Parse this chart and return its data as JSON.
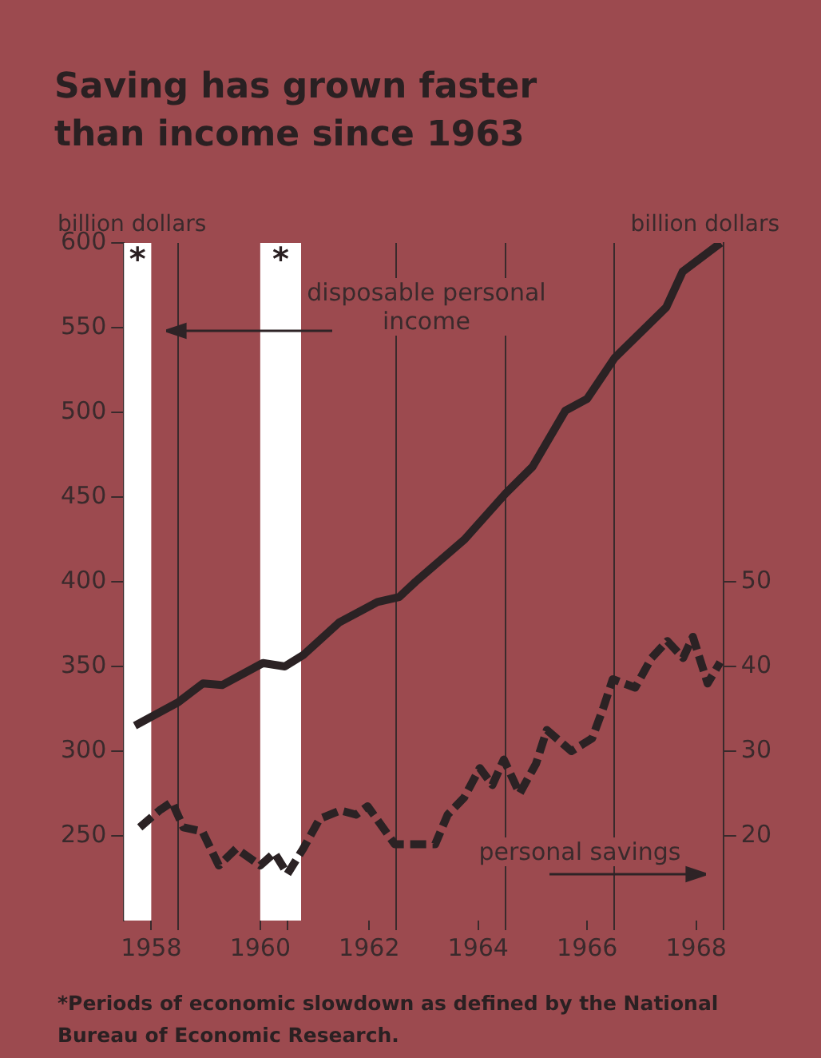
{
  "chart_data": {
    "type": "line",
    "title": "Saving has grown faster than income since 1963",
    "ylabel": "billion dollars",
    "y2label": "billion dollars",
    "xlim": [
      1958,
      1969
    ],
    "xticks": [
      {
        "value": 1958.5,
        "label": "1958"
      },
      {
        "value": 1959,
        "label": null
      },
      {
        "value": 1960.5,
        "label": "1960"
      },
      {
        "value": 1961,
        "label": null
      },
      {
        "value": 1962.5,
        "label": "1962"
      },
      {
        "value": 1963,
        "label": null
      },
      {
        "value": 1964.5,
        "label": "1964"
      },
      {
        "value": 1965,
        "label": null
      },
      {
        "value": 1966.5,
        "label": "1966"
      },
      {
        "value": 1967,
        "label": null
      },
      {
        "value": 1968.5,
        "label": "1968"
      },
      {
        "value": 1969,
        "label": null
      }
    ],
    "ylim": [
      200,
      600
    ],
    "yticks": [
      250,
      300,
      350,
      400,
      450,
      500,
      550,
      600
    ],
    "y2lim": [
      10,
      90
    ],
    "y2ticks": [
      20,
      30,
      40,
      50
    ],
    "grid": "x",
    "legend": false,
    "series": [
      {
        "color": "#2b2224",
        "line_style": "solid",
        "x": [
          1958.2,
          1959.0,
          1959.45,
          1959.8,
          1960.55,
          1960.95,
          1961.3,
          1961.95,
          1962.65,
          1963.05,
          1963.35,
          1964.25,
          1965.0,
          1965.5,
          1966.1,
          1966.5,
          1967.0,
          1967.95,
          1968.25,
          1968.95
        ],
        "values": [
          315,
          329,
          340,
          339,
          352,
          350,
          357,
          376,
          388,
          391,
          400,
          425,
          452,
          468,
          501,
          508,
          532,
          562,
          583,
          600
        ]
      },
      {
        "axis": "y2",
        "color": "#2b2224",
        "line_style": "dashed",
        "x": [
          1958.29,
          1958.65,
          1958.88,
          1959.09,
          1959.44,
          1959.74,
          1960.06,
          1960.5,
          1960.76,
          1961.0,
          1961.29,
          1961.59,
          1961.97,
          1962.26,
          1962.47,
          1962.97,
          1963.71,
          1963.94,
          1964.24,
          1964.53,
          1964.76,
          1964.97,
          1965.26,
          1965.56,
          1965.76,
          1966.21,
          1966.59,
          1966.79,
          1966.97,
          1967.38,
          1967.68,
          1967.97,
          1968.26,
          1968.44,
          1968.71,
          1968.94
        ],
        "values": [
          21,
          23,
          24,
          21,
          20.5,
          16.5,
          18.5,
          16.5,
          18,
          15.5,
          18.5,
          22,
          23,
          22.5,
          23.5,
          19,
          19,
          22.5,
          24.5,
          28,
          26,
          29,
          25,
          28.5,
          32.5,
          30,
          31.5,
          35,
          38.5,
          37.5,
          41,
          43,
          41,
          43.5,
          38,
          40.5
        ]
      }
    ],
    "bands": [
      {
        "axis": "x",
        "from": 1958,
        "to": 1958.5,
        "label": "*",
        "color": "#ffffff"
      },
      {
        "axis": "x",
        "from": 1960.5,
        "to": 1961.25,
        "label": "*",
        "color": "#ffffff"
      }
    ],
    "annotations": [
      "disposable personal income",
      "personal savings",
      "*Periods of economic slowdown as defined by the National Bureau of Economic Research."
    ]
  }
}
